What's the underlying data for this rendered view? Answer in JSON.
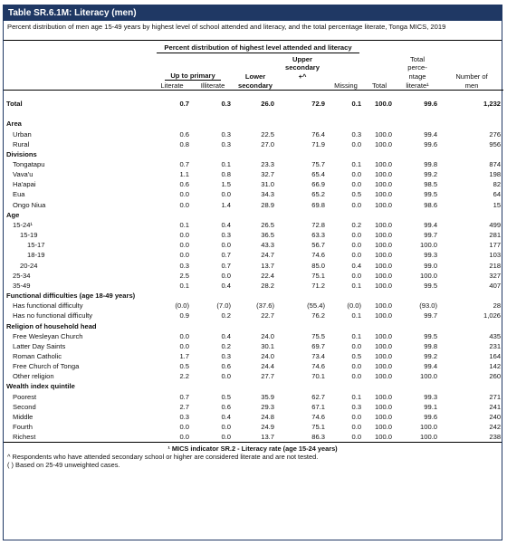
{
  "title": "Table SR.6.1M: Literacy (men)",
  "subtitle": "Percent distribution of men age 15-49 years by highest level of school attended and literacy, and the total percentage literate, Tonga MICS, 2019",
  "header": {
    "group": "Percent distribution of highest level attended and literacy",
    "up_to_primary": "Up to primary",
    "literate": "Literate",
    "illiterate": "Illiterate",
    "lower_secondary_1": "Lower",
    "lower_secondary_2": "secondary",
    "upper_secondary_1": "Upper",
    "upper_secondary_2": "secondary",
    "upper_secondary_3": "+^",
    "missing": "Missing",
    "total": "Total",
    "pct_lit_1": "Total",
    "pct_lit_2": "perce-",
    "pct_lit_3": "ntage",
    "pct_lit_4": "literate¹",
    "num_1": "Number of",
    "num_2": "men"
  },
  "total_row": [
    "Total",
    "0.7",
    "0.3",
    "26.0",
    "72.9",
    "0.1",
    "100.0",
    "99.6",
    "1,232"
  ],
  "rows": [
    {
      "t": "s",
      "label": "Area"
    },
    {
      "t": "r",
      "i": 1,
      "v": [
        "Urban",
        "0.6",
        "0.3",
        "22.5",
        "76.4",
        "0.3",
        "100.0",
        "99.4",
        "276"
      ]
    },
    {
      "t": "r",
      "i": 1,
      "v": [
        "Rural",
        "0.8",
        "0.3",
        "27.0",
        "71.9",
        "0.0",
        "100.0",
        "99.6",
        "956"
      ]
    },
    {
      "t": "s",
      "label": "Divisions"
    },
    {
      "t": "r",
      "i": 1,
      "v": [
        "Tongatapu",
        "0.7",
        "0.1",
        "23.3",
        "75.7",
        "0.1",
        "100.0",
        "99.8",
        "874"
      ]
    },
    {
      "t": "r",
      "i": 1,
      "v": [
        "Vava'u",
        "1.1",
        "0.8",
        "32.7",
        "65.4",
        "0.0",
        "100.0",
        "99.2",
        "198"
      ]
    },
    {
      "t": "r",
      "i": 1,
      "v": [
        "Ha'apai",
        "0.6",
        "1.5",
        "31.0",
        "66.9",
        "0.0",
        "100.0",
        "98.5",
        "82"
      ]
    },
    {
      "t": "r",
      "i": 1,
      "v": [
        "Eua",
        "0.0",
        "0.0",
        "34.3",
        "65.2",
        "0.5",
        "100.0",
        "99.5",
        "64"
      ]
    },
    {
      "t": "r",
      "i": 1,
      "v": [
        "Ongo Niua",
        "0.0",
        "1.4",
        "28.9",
        "69.8",
        "0.0",
        "100.0",
        "98.6",
        "15"
      ]
    },
    {
      "t": "s",
      "label": "Age"
    },
    {
      "t": "r",
      "i": 1,
      "v": [
        "15-24¹",
        "0.1",
        "0.4",
        "26.5",
        "72.8",
        "0.2",
        "100.0",
        "99.4",
        "499"
      ]
    },
    {
      "t": "r",
      "i": 2,
      "v": [
        "15-19",
        "0.0",
        "0.3",
        "36.5",
        "63.3",
        "0.0",
        "100.0",
        "99.7",
        "281"
      ]
    },
    {
      "t": "r",
      "i": 3,
      "v": [
        "15-17",
        "0.0",
        "0.0",
        "43.3",
        "56.7",
        "0.0",
        "100.0",
        "100.0",
        "177"
      ]
    },
    {
      "t": "r",
      "i": 3,
      "v": [
        "18-19",
        "0.0",
        "0.7",
        "24.7",
        "74.6",
        "0.0",
        "100.0",
        "99.3",
        "103"
      ]
    },
    {
      "t": "r",
      "i": 2,
      "v": [
        "20-24",
        "0.3",
        "0.7",
        "13.7",
        "85.0",
        "0.4",
        "100.0",
        "99.0",
        "218"
      ]
    },
    {
      "t": "r",
      "i": 1,
      "v": [
        "25-34",
        "2.5",
        "0.0",
        "22.4",
        "75.1",
        "0.0",
        "100.0",
        "100.0",
        "327"
      ]
    },
    {
      "t": "r",
      "i": 1,
      "v": [
        "35-49",
        "0.1",
        "0.4",
        "28.2",
        "71.2",
        "0.1",
        "100.0",
        "99.5",
        "407"
      ]
    },
    {
      "t": "s",
      "label": "Functional difficulties (age 18-49 years)"
    },
    {
      "t": "r",
      "i": 1,
      "v": [
        "Has functional difficulty",
        "(0.0)",
        "(7.0)",
        "(37.6)",
        "(55.4)",
        "(0.0)",
        "100.0",
        "(93.0)",
        "28"
      ]
    },
    {
      "t": "r",
      "i": 1,
      "v": [
        "Has no functional difficulty",
        "0.9",
        "0.2",
        "22.7",
        "76.2",
        "0.1",
        "100.0",
        "99.7",
        "1,026"
      ]
    },
    {
      "t": "s",
      "label": "Religion of household head"
    },
    {
      "t": "r",
      "i": 1,
      "v": [
        "Free Wesleyan Church",
        "0.0",
        "0.4",
        "24.0",
        "75.5",
        "0.1",
        "100.0",
        "99.5",
        "435"
      ]
    },
    {
      "t": "r",
      "i": 1,
      "v": [
        "Latter Day Saints",
        "0.0",
        "0.2",
        "30.1",
        "69.7",
        "0.0",
        "100.0",
        "99.8",
        "231"
      ]
    },
    {
      "t": "r",
      "i": 1,
      "v": [
        "Roman Catholic",
        "1.7",
        "0.3",
        "24.0",
        "73.4",
        "0.5",
        "100.0",
        "99.2",
        "164"
      ]
    },
    {
      "t": "r",
      "i": 1,
      "v": [
        "Free Church of Tonga",
        "0.5",
        "0.6",
        "24.4",
        "74.6",
        "0.0",
        "100.0",
        "99.4",
        "142"
      ]
    },
    {
      "t": "r",
      "i": 1,
      "v": [
        "Other religion",
        "2.2",
        "0.0",
        "27.7",
        "70.1",
        "0.0",
        "100.0",
        "100.0",
        "260"
      ]
    },
    {
      "t": "s",
      "label": "Wealth index quintile"
    },
    {
      "t": "r",
      "i": 1,
      "v": [
        "Poorest",
        "0.7",
        "0.5",
        "35.9",
        "62.7",
        "0.1",
        "100.0",
        "99.3",
        "271"
      ]
    },
    {
      "t": "r",
      "i": 1,
      "v": [
        "Second",
        "2.7",
        "0.6",
        "29.3",
        "67.1",
        "0.3",
        "100.0",
        "99.1",
        "241"
      ]
    },
    {
      "t": "r",
      "i": 1,
      "v": [
        "Middle",
        "0.3",
        "0.4",
        "24.8",
        "74.6",
        "0.0",
        "100.0",
        "99.6",
        "240"
      ]
    },
    {
      "t": "r",
      "i": 1,
      "v": [
        "Fourth",
        "0.0",
        "0.0",
        "24.9",
        "75.1",
        "0.0",
        "100.0",
        "100.0",
        "242"
      ]
    },
    {
      "t": "r",
      "i": 1,
      "v": [
        "Richest",
        "0.0",
        "0.0",
        "13.7",
        "86.3",
        "0.0",
        "100.0",
        "100.0",
        "238"
      ]
    }
  ],
  "footnotes": {
    "indicator": "¹ MICS indicator SR.2 - Literacy rate (age 15-24 years)",
    "note1": "^ Respondents who have attended secondary school or higher are considered literate and are not tested.",
    "note2": "( ) Based on 25-49 unweighted cases."
  }
}
